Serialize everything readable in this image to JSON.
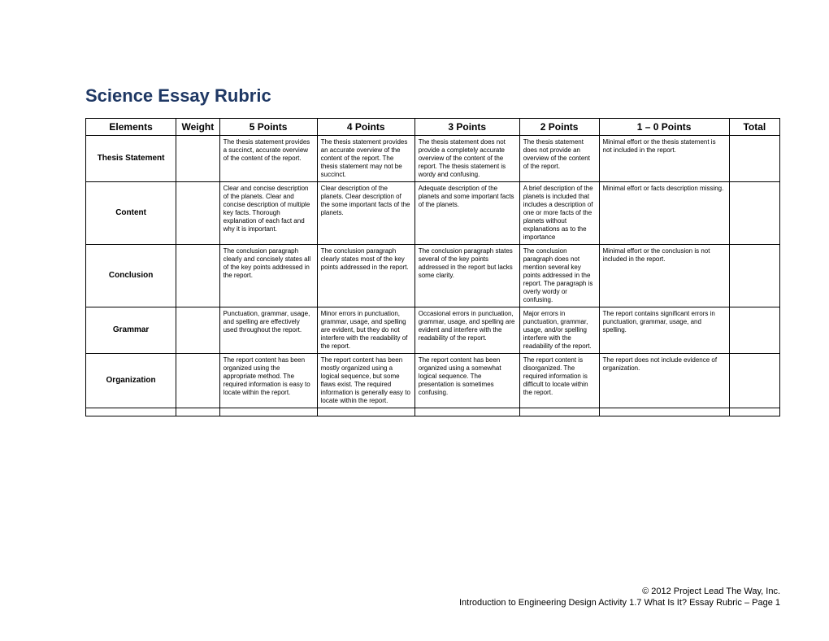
{
  "title": "Science Essay Rubric",
  "columns": {
    "elements": "Elements",
    "weight": "Weight",
    "p5": "5 Points",
    "p4": "4 Points",
    "p3": "3 Points",
    "p2": "2 Points",
    "p1": "1 – 0 Points",
    "total": "Total"
  },
  "rows": [
    {
      "element": "Thesis Statement",
      "p5": "The thesis statement provides a succinct, accurate overview of the content of the report.",
      "p4": "The thesis statement provides an accurate overview of the content of the report. The thesis statement may not be succinct.",
      "p3": "The thesis statement does not provide a completely accurate overview of the content of the report. The thesis statement is wordy and confusing.",
      "p2": "The thesis statement does not provide an overview of the content of the report.",
      "p1": "Minimal effort or the thesis statement is not included in the report."
    },
    {
      "element": "Content",
      "p5": "Clear and concise description of the planets. Clear and concise description of multiple key facts. Thorough explanation of each fact and why it is important.",
      "p4": "Clear description of the planets. Clear description of the some important facts of the planets.",
      "p3": "Adequate description of the planets and some important facts of the planets.",
      "p2": "A brief description of the planets is included that includes a description of one or more facts of the planets without explanations as to the importance",
      "p1": "Minimal effort or facts description missing."
    },
    {
      "element": "Conclusion",
      "p5": "The conclusion paragraph clearly and concisely states all of the key points addressed in the report.",
      "p4": "The conclusion paragraph clearly states most of the key points addressed in the report.",
      "p3": "The conclusion paragraph states several of the key points addressed in the report but lacks some clarity.",
      "p2": "The conclusion paragraph does not mention several key points addressed in the report. The paragraph is overly wordy or confusing.",
      "p1": "Minimal effort or the conclusion is not included in the report."
    },
    {
      "element": "Grammar",
      "p5": "Punctuation, grammar, usage, and spelling are effectively used throughout the report.",
      "p4": "Minor errors in punctuation, grammar, usage, and spelling are evident, but they do not interfere with the readability of the report.",
      "p3": "Occasional errors in punctuation, grammar, usage, and spelling are evident and interfere with the readability of the report.",
      "p2": "Major errors in punctuation, grammar, usage, and/or spelling interfere with the readability of the report.",
      "p1": "The report contains significant errors in punctuation, grammar, usage, and spelling."
    },
    {
      "element": "Organization",
      "p5": "The report content has been organized using the appropriate method. The required information is easy to locate within the report.",
      "p4": "The report content has been mostly organized using a logical sequence, but some flaws exist. The required information is generally easy to locate within the report.",
      "p3": "The report content has been organized using a somewhat logical sequence. The presentation is sometimes confusing.",
      "p2": "The report content is disorganized. The required information is difficult to locate within the report.",
      "p1": "The report does not include evidence of organization."
    }
  ],
  "footer": {
    "copyright": "© 2012 Project Lead The Way, Inc.",
    "page": "Introduction to Engineering Design Activity 1.7 What Is It? Essay Rubric – Page 1"
  },
  "style": {
    "title_color": "#1f3864",
    "border_color": "#000000",
    "background_color": "#ffffff",
    "title_fontsize": 22,
    "header_fontsize": 12,
    "element_label_fontsize": 10,
    "cell_fontsize": 8,
    "footer_fontsize": 11,
    "font_family": "Arial"
  }
}
